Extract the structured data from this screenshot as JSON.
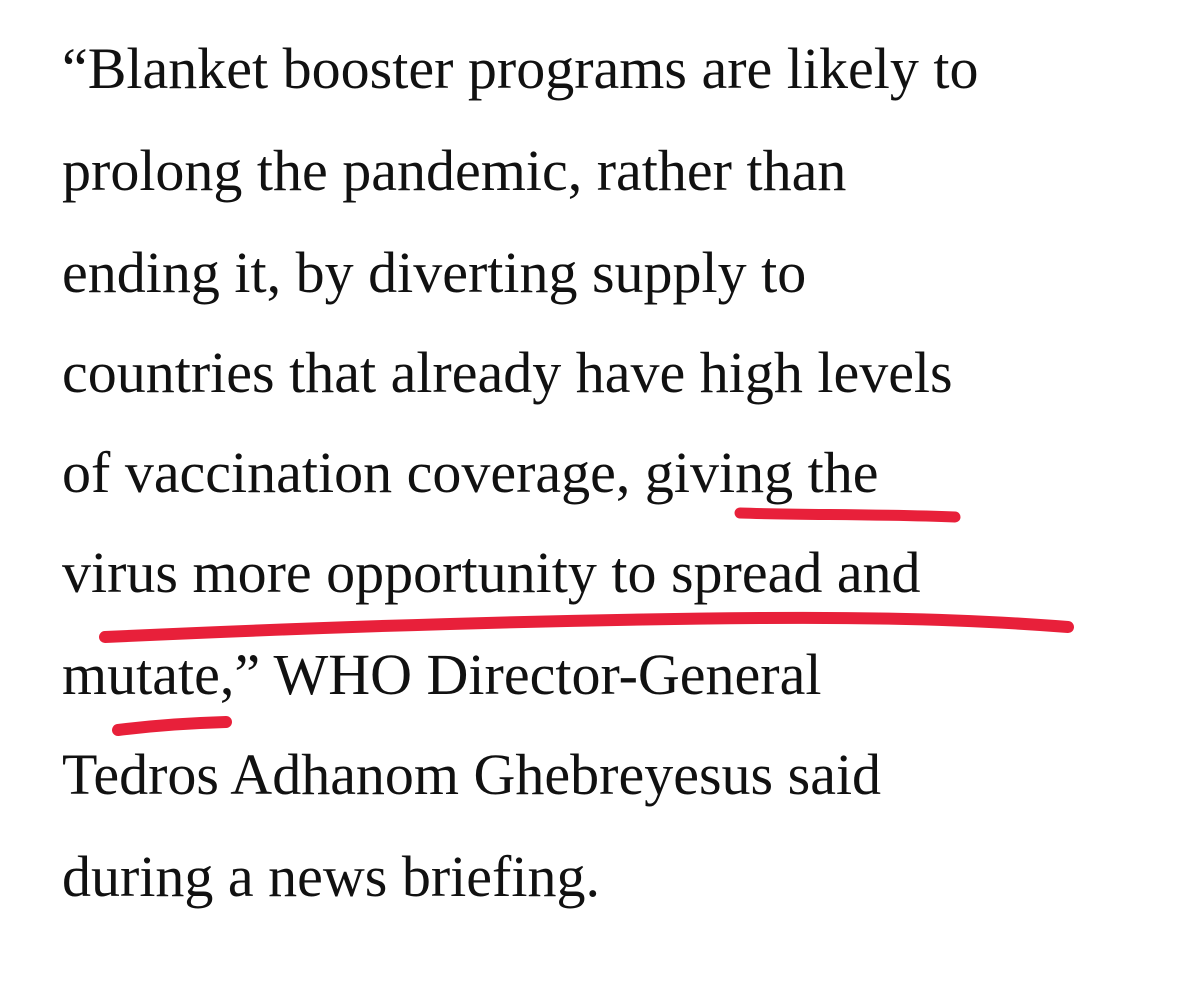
{
  "quote": {
    "lines": [
      "“Blanket booster programs are likely to",
      "prolong the pandemic, rather than",
      "ending it, by diverting supply to",
      "countries that already have high levels",
      "of vaccination coverage, giving the",
      "virus more opportunity to spread and",
      "mutate,” WHO Director-General",
      "Tedros Adhanom Ghebreyesus said",
      "during a news briefing."
    ]
  },
  "underline": {
    "color": "#e8203a",
    "highlighted_phrase": "giving the virus more opportunity to spread and mutate"
  }
}
